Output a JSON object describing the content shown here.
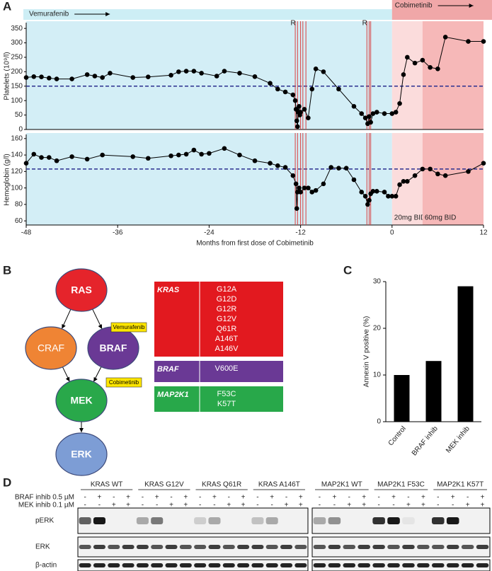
{
  "panel_labels": [
    "A",
    "B",
    "C",
    "D"
  ],
  "treatment": {
    "drugs": [
      {
        "label": "Vemurafenib",
        "start": -48,
        "end": 0
      },
      {
        "label": "Cobimetinib",
        "start": 0,
        "end": 12
      }
    ],
    "doses": [
      {
        "label": "20mg BID",
        "start": 0,
        "end": 4
      },
      {
        "label": "60mg BID",
        "start": 4,
        "end": 12
      }
    ]
  },
  "chart_data": [
    {
      "type": "line",
      "y_label": "Platelets  (10⁹/l)",
      "color": "#000000",
      "x": [
        -48,
        -47,
        -46,
        -45,
        -44,
        -42,
        -40,
        -39,
        -38,
        -37,
        -34,
        -32,
        -29,
        -28,
        -27,
        -26,
        -25,
        -23,
        -22,
        -20,
        -18,
        -16,
        -15,
        -14,
        -13,
        -12.7,
        -12.6,
        -12.5,
        -12.4,
        -12.3,
        -12.2,
        -12.1,
        -12,
        -11.5,
        -11,
        -10.5,
        -10,
        -9,
        -7,
        -5,
        -4,
        -3.5,
        -3.2,
        -3,
        -2.8,
        -2.5,
        -2,
        -1,
        0,
        0.5,
        1,
        1.5,
        2,
        3,
        4,
        5,
        6,
        7,
        10,
        12
      ],
      "values": [
        180,
        183,
        182,
        178,
        175,
        175,
        190,
        185,
        180,
        195,
        180,
        182,
        188,
        200,
        202,
        202,
        195,
        185,
        202,
        195,
        183,
        160,
        140,
        130,
        120,
        100,
        70,
        30,
        10,
        60,
        80,
        50,
        60,
        70,
        40,
        140,
        210,
        200,
        140,
        80,
        55,
        40,
        20,
        45,
        25,
        55,
        60,
        55,
        55,
        60,
        90,
        190,
        250,
        230,
        240,
        215,
        210,
        320,
        305,
        305
      ],
      "xlim": [
        -48,
        12
      ],
      "ylim": [
        0,
        370
      ],
      "yticks": [
        0,
        50,
        100,
        150,
        200,
        250,
        300,
        350
      ],
      "reference_line": 150,
      "event_lines": [
        -12.7,
        -12.4,
        -12,
        -11.7,
        -11.3,
        -3.3,
        -3,
        -2.8
      ],
      "event_labels": [
        {
          "label": "R",
          "x": -12.7
        },
        {
          "label": "R",
          "x": -3.3
        }
      ]
    },
    {
      "type": "line",
      "y_label": "Hemoglobin (g/l)",
      "x_label": "Months from first dose of Cobimetinib",
      "color": "#000000",
      "x": [
        -48,
        -47,
        -46,
        -45,
        -44,
        -42,
        -40,
        -38,
        -34,
        -32,
        -29,
        -28,
        -27,
        -26,
        -25,
        -24,
        -22,
        -20,
        -18,
        -16,
        -15,
        -14,
        -13,
        -12.6,
        -12.5,
        -12.4,
        -12.2,
        -12,
        -11.5,
        -11,
        -10.5,
        -10,
        -9,
        -8,
        -7,
        -6,
        -5,
        -4,
        -3.5,
        -3.2,
        -3,
        -2.8,
        -2.5,
        -2,
        -1,
        -0.5,
        0,
        0.5,
        1,
        1.5,
        2,
        3,
        4,
        5,
        6,
        7,
        10,
        12
      ],
      "values": [
        130,
        141,
        137,
        137,
        133,
        138,
        135,
        140,
        138,
        136,
        139,
        140,
        141,
        146,
        141,
        142,
        148,
        140,
        133,
        130,
        127,
        125,
        115,
        105,
        75,
        95,
        100,
        95,
        100,
        100,
        95,
        97,
        105,
        125,
        124,
        124,
        110,
        95,
        90,
        80,
        85,
        93,
        96,
        96,
        95,
        90,
        90,
        90,
        104,
        108,
        108,
        115,
        123,
        123,
        117,
        115,
        120,
        130
      ],
      "xlim": [
        -48,
        12
      ],
      "xticks": [
        -48,
        -36,
        -24,
        -12,
        0,
        12
      ],
      "ylim": [
        55,
        165
      ],
      "yticks": [
        60,
        80,
        100,
        120,
        140,
        160
      ],
      "reference_line": 123,
      "event_lines": [
        -12.7,
        -12.4,
        -12,
        -11.7,
        -11.3,
        -3.3,
        -3,
        -2.8
      ]
    },
    {
      "type": "bar",
      "y_label": "Annexin V positive (%)",
      "color": "#000000",
      "categories": [
        "Control",
        "BRAF inhib",
        "MEK inhib"
      ],
      "values": [
        10,
        13,
        29
      ],
      "ylim": [
        0,
        30
      ],
      "yticks": [
        0,
        10,
        20,
        30
      ]
    }
  ],
  "pathway": {
    "nodes": [
      {
        "label": "RAS",
        "color": "#e5242b"
      },
      {
        "label": "CRAF",
        "color": "#ef8434"
      },
      {
        "label": "BRAF",
        "color": "#6a3995"
      },
      {
        "label": "MEK",
        "color": "#29a84a"
      },
      {
        "label": "ERK",
        "color": "#7d9dd5"
      }
    ],
    "inhibitors": [
      "Vemurafenib",
      "Cobimetinib"
    ]
  },
  "mutations": [
    {
      "gene": "KRAS",
      "color": "#e2191f",
      "variants": [
        "G12A",
        "G12D",
        "G12R",
        "G12V",
        "Q61R",
        "A146T",
        "A146V"
      ]
    },
    {
      "gene": "BRAF",
      "color": "#6a3995",
      "variants": [
        "V600E"
      ]
    },
    {
      "gene": "MAP2K1",
      "color": "#28a84a",
      "variants": [
        "F53C",
        "K57T"
      ]
    }
  ],
  "blot": {
    "groups": [
      "KRAS WT",
      "KRAS G12V",
      "KRAS Q61R",
      "KRAS A146T",
      "MAP2K1 WT",
      "MAP2K1 F53C",
      "MAP2K1 K57T"
    ],
    "treatments": [
      {
        "label": "BRAF inhib 0.5 µM",
        "signs": [
          "-",
          "+",
          "-",
          "+"
        ]
      },
      {
        "label": "MEK inhib 0.1 µM",
        "signs": [
          "-",
          "-",
          "+",
          "+"
        ]
      }
    ],
    "bands": [
      "pERK",
      "ERK",
      "β-actin"
    ]
  }
}
